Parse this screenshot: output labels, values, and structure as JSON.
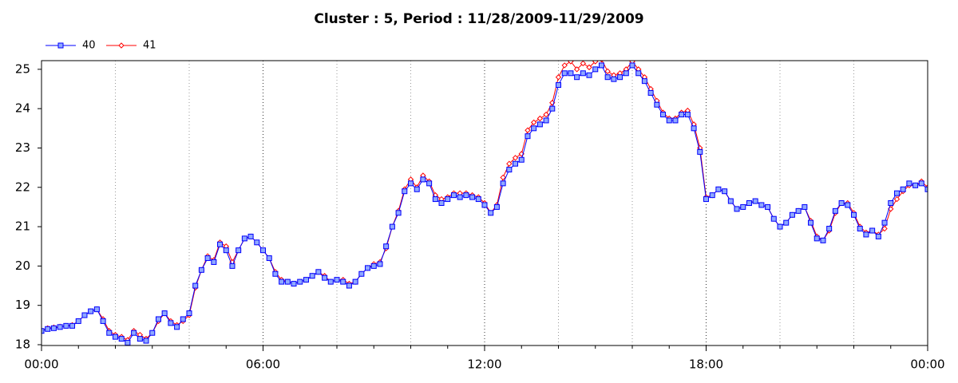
{
  "chart_data": {
    "type": "line",
    "title": "Cluster : 5, Period : 11/28/2009-11/29/2009",
    "x": [
      0,
      0.167,
      0.333,
      0.5,
      0.667,
      0.833,
      1,
      1.167,
      1.333,
      1.5,
      1.667,
      1.833,
      2,
      2.167,
      2.333,
      2.5,
      2.667,
      2.833,
      3,
      3.167,
      3.333,
      3.5,
      3.667,
      3.833,
      4,
      4.167,
      4.333,
      4.5,
      4.667,
      4.833,
      5,
      5.167,
      5.333,
      5.5,
      5.667,
      5.833,
      6,
      6.167,
      6.333,
      6.5,
      6.667,
      6.833,
      7,
      7.167,
      7.333,
      7.5,
      7.667,
      7.833,
      8,
      8.167,
      8.333,
      8.5,
      8.667,
      8.833,
      9,
      9.167,
      9.333,
      9.5,
      9.667,
      9.833,
      10,
      10.167,
      10.333,
      10.5,
      10.667,
      10.833,
      11,
      11.167,
      11.333,
      11.5,
      11.667,
      11.833,
      12,
      12.167,
      12.333,
      12.5,
      12.667,
      12.833,
      13,
      13.167,
      13.333,
      13.5,
      13.667,
      13.833,
      14,
      14.167,
      14.333,
      14.5,
      14.667,
      14.833,
      15,
      15.167,
      15.333,
      15.5,
      15.667,
      15.833,
      16,
      16.167,
      16.333,
      16.5,
      16.667,
      16.833,
      17,
      17.167,
      17.333,
      17.5,
      17.667,
      17.833,
      18,
      18.167,
      18.333,
      18.5,
      18.667,
      18.833,
      19,
      19.167,
      19.333,
      19.5,
      19.667,
      19.833,
      20,
      20.167,
      20.333,
      20.5,
      20.667,
      20.833,
      21,
      21.167,
      21.333,
      21.5,
      21.667,
      21.833,
      22,
      22.167,
      22.333,
      22.5,
      22.667,
      22.833,
      23,
      23.167,
      23.333,
      23.5,
      23.667,
      23.833,
      24
    ],
    "series": [
      {
        "name": "41",
        "color": "#ff0000",
        "marker": "diamond",
        "values": [
          18.35,
          18.42,
          18.44,
          18.46,
          18.48,
          18.5,
          18.6,
          18.75,
          18.85,
          18.9,
          18.65,
          18.35,
          18.25,
          18.2,
          18.12,
          18.35,
          18.25,
          18.15,
          18.3,
          18.6,
          18.8,
          18.6,
          18.5,
          18.6,
          18.75,
          19.45,
          19.9,
          20.25,
          20.15,
          20.6,
          20.5,
          20.1,
          20.4,
          20.7,
          20.75,
          20.6,
          20.4,
          20.2,
          19.85,
          19.65,
          19.6,
          19.55,
          19.6,
          19.65,
          19.75,
          19.85,
          19.75,
          19.6,
          19.65,
          19.65,
          19.55,
          19.6,
          19.8,
          19.95,
          20.05,
          20.1,
          20.45,
          21.0,
          21.4,
          21.95,
          22.2,
          22.0,
          22.3,
          22.15,
          21.8,
          21.7,
          21.75,
          21.85,
          21.85,
          21.85,
          21.8,
          21.75,
          21.6,
          21.35,
          21.55,
          22.25,
          22.6,
          22.75,
          22.85,
          23.45,
          23.65,
          23.75,
          23.85,
          24.15,
          24.8,
          25.1,
          25.2,
          25.0,
          25.15,
          25.05,
          25.2,
          25.25,
          24.95,
          24.85,
          24.9,
          25.0,
          25.2,
          25.0,
          24.8,
          24.5,
          24.2,
          23.9,
          23.75,
          23.75,
          23.9,
          23.95,
          23.6,
          23.0,
          21.75,
          21.8,
          21.95,
          21.9,
          21.65,
          21.45,
          21.5,
          21.6,
          21.65,
          21.55,
          21.5,
          21.2,
          21.0,
          21.1,
          21.3,
          21.4,
          21.5,
          21.15,
          20.75,
          20.65,
          20.9,
          21.35,
          21.6,
          21.6,
          21.35,
          21.0,
          20.85,
          20.9,
          20.8,
          20.95,
          21.45,
          21.7,
          21.9,
          22.05,
          22.05,
          22.15,
          22.0
        ]
      },
      {
        "name": "40",
        "color": "#0000ff",
        "marker": "square",
        "values": [
          18.35,
          18.4,
          18.42,
          18.45,
          18.48,
          18.48,
          18.6,
          18.75,
          18.85,
          18.9,
          18.6,
          18.3,
          18.2,
          18.15,
          18.05,
          18.3,
          18.15,
          18.1,
          18.3,
          18.65,
          18.8,
          18.55,
          18.45,
          18.65,
          18.8,
          19.5,
          19.9,
          20.2,
          20.1,
          20.55,
          20.4,
          20.0,
          20.4,
          20.7,
          20.75,
          20.6,
          20.4,
          20.2,
          19.8,
          19.6,
          19.6,
          19.55,
          19.6,
          19.65,
          19.75,
          19.85,
          19.7,
          19.6,
          19.65,
          19.6,
          19.5,
          19.6,
          19.8,
          19.95,
          20.0,
          20.05,
          20.5,
          21.0,
          21.35,
          21.9,
          22.1,
          21.95,
          22.2,
          22.1,
          21.7,
          21.6,
          21.7,
          21.8,
          21.75,
          21.8,
          21.75,
          21.7,
          21.55,
          21.35,
          21.5,
          22.1,
          22.45,
          22.6,
          22.7,
          23.3,
          23.5,
          23.6,
          23.7,
          24.0,
          24.6,
          24.9,
          24.9,
          24.8,
          24.9,
          24.85,
          25.0,
          25.1,
          24.8,
          24.75,
          24.8,
          24.9,
          25.1,
          24.9,
          24.7,
          24.4,
          24.1,
          23.85,
          23.7,
          23.7,
          23.85,
          23.85,
          23.5,
          22.9,
          21.7,
          21.8,
          21.95,
          21.9,
          21.65,
          21.45,
          21.5,
          21.6,
          21.65,
          21.55,
          21.5,
          21.2,
          21.0,
          21.1,
          21.3,
          21.4,
          21.5,
          21.1,
          20.7,
          20.65,
          20.95,
          21.4,
          21.6,
          21.55,
          21.3,
          20.95,
          20.8,
          20.9,
          20.75,
          21.1,
          21.6,
          21.85,
          21.95,
          22.1,
          22.05,
          22.1,
          21.95
        ]
      }
    ],
    "legend_order": [
      1,
      0
    ],
    "xlim": [
      0,
      24
    ],
    "xticks": [
      {
        "value": 0,
        "label": "00:00"
      },
      {
        "value": 6,
        "label": "06:00"
      },
      {
        "value": 12,
        "label": "12:00"
      },
      {
        "value": 18,
        "label": "18:00"
      },
      {
        "value": 24,
        "label": "00:00"
      }
    ],
    "xminorticks": [
      1,
      2,
      3,
      4,
      5,
      7,
      8,
      9,
      10,
      11,
      13,
      14,
      15,
      16,
      17,
      19,
      20,
      21,
      22,
      23
    ],
    "xgrid": [
      2,
      4,
      8,
      10,
      14,
      16,
      20,
      22
    ],
    "ylim": [
      17.98,
      25.22
    ],
    "yticks": [
      18,
      19,
      20,
      21,
      22,
      23,
      24,
      25
    ]
  }
}
